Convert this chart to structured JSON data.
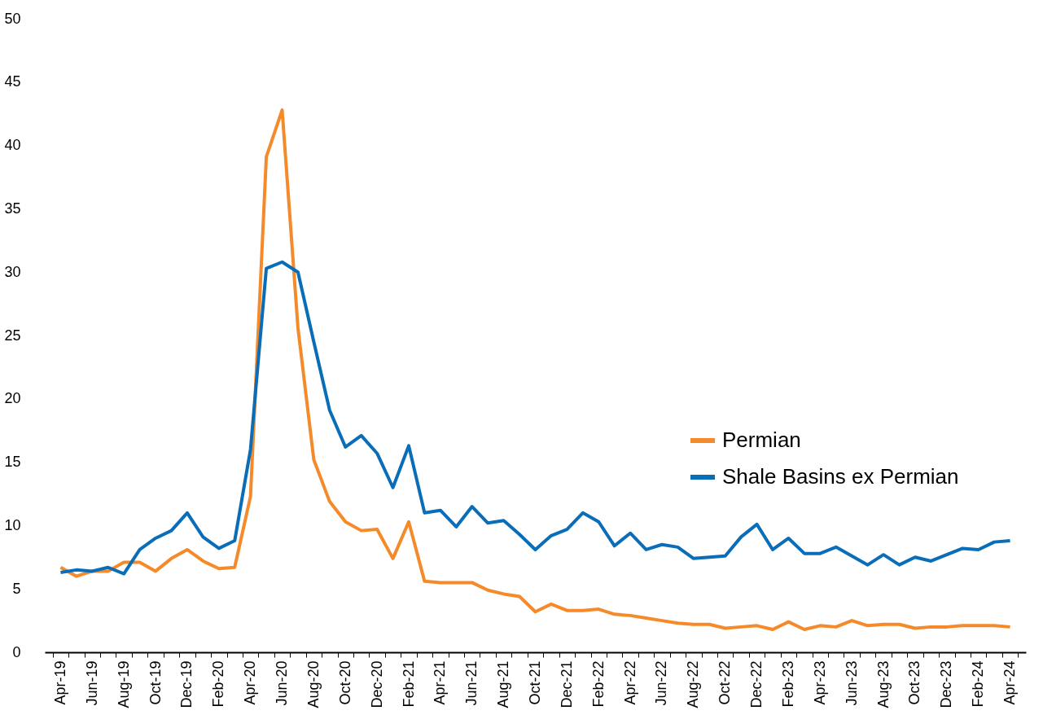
{
  "chart_data": {
    "type": "line",
    "categories": [
      "Apr-19",
      null,
      "Jun-19",
      null,
      "Aug-19",
      null,
      "Oct-19",
      null,
      "Dec-19",
      null,
      "Feb-20",
      null,
      "Apr-20",
      null,
      "Jun-20",
      null,
      "Aug-20",
      null,
      "Oct-20",
      null,
      "Dec-20",
      null,
      "Feb-21",
      null,
      "Apr-21",
      null,
      "Jun-21",
      null,
      "Aug-21",
      null,
      "Oct-21",
      null,
      "Dec-21",
      null,
      "Feb-22",
      null,
      "Apr-22",
      null,
      "Jun-22",
      null,
      "Aug-22",
      null,
      "Oct-22",
      null,
      "Dec-22",
      null,
      "Feb-23",
      null,
      "Apr-23",
      null,
      "Jun-23",
      null,
      "Aug-23",
      null,
      "Oct-23",
      null,
      "Dec-23",
      null,
      "Feb-24",
      null,
      "Apr-24"
    ],
    "series": [
      {
        "name": "Permian",
        "color": "#f58a2a",
        "values": [
          6.7,
          6.0,
          6.4,
          6.4,
          7.1,
          7.1,
          6.4,
          7.4,
          8.1,
          7.2,
          6.6,
          6.7,
          12.3,
          39.1,
          42.8,
          25.6,
          15.2,
          11.9,
          10.3,
          9.6,
          9.7,
          7.4,
          10.3,
          5.6,
          5.5,
          5.5,
          5.5,
          4.9,
          4.6,
          4.4,
          3.2,
          3.8,
          3.3,
          3.3,
          3.4,
          3.0,
          2.9,
          2.7,
          2.5,
          2.3,
          2.2,
          2.2,
          1.9,
          2.0,
          2.1,
          1.8,
          2.4,
          1.8,
          2.1,
          2.0,
          2.5,
          2.1,
          2.2,
          2.2,
          1.9,
          2.0,
          2.0,
          2.1,
          2.1,
          2.1,
          2.0
        ]
      },
      {
        "name": "Shale Basins ex Permian",
        "color": "#0a6db8",
        "values": [
          6.3,
          6.5,
          6.4,
          6.7,
          6.2,
          8.1,
          9.0,
          9.6,
          11.0,
          9.1,
          8.2,
          8.8,
          16.0,
          30.3,
          30.8,
          30.0,
          24.5,
          19.1,
          16.2,
          17.1,
          15.7,
          13.0,
          16.3,
          11.0,
          11.2,
          9.9,
          11.5,
          10.2,
          10.4,
          9.3,
          8.1,
          9.2,
          9.7,
          11.0,
          10.3,
          8.4,
          9.4,
          8.1,
          8.5,
          8.3,
          7.4,
          7.5,
          7.6,
          9.1,
          10.1,
          8.1,
          9.0,
          7.8,
          7.8,
          8.3,
          7.6,
          6.9,
          7.7,
          6.9,
          7.5,
          7.2,
          7.7,
          8.2,
          8.1,
          8.7,
          8.8
        ]
      }
    ],
    "ylim": [
      0,
      50
    ],
    "yticks": [
      0,
      5,
      10,
      15,
      20,
      25,
      30,
      35,
      40,
      45,
      50
    ],
    "grid": false,
    "legend": "right",
    "marker": "none",
    "line_style": "solid"
  }
}
